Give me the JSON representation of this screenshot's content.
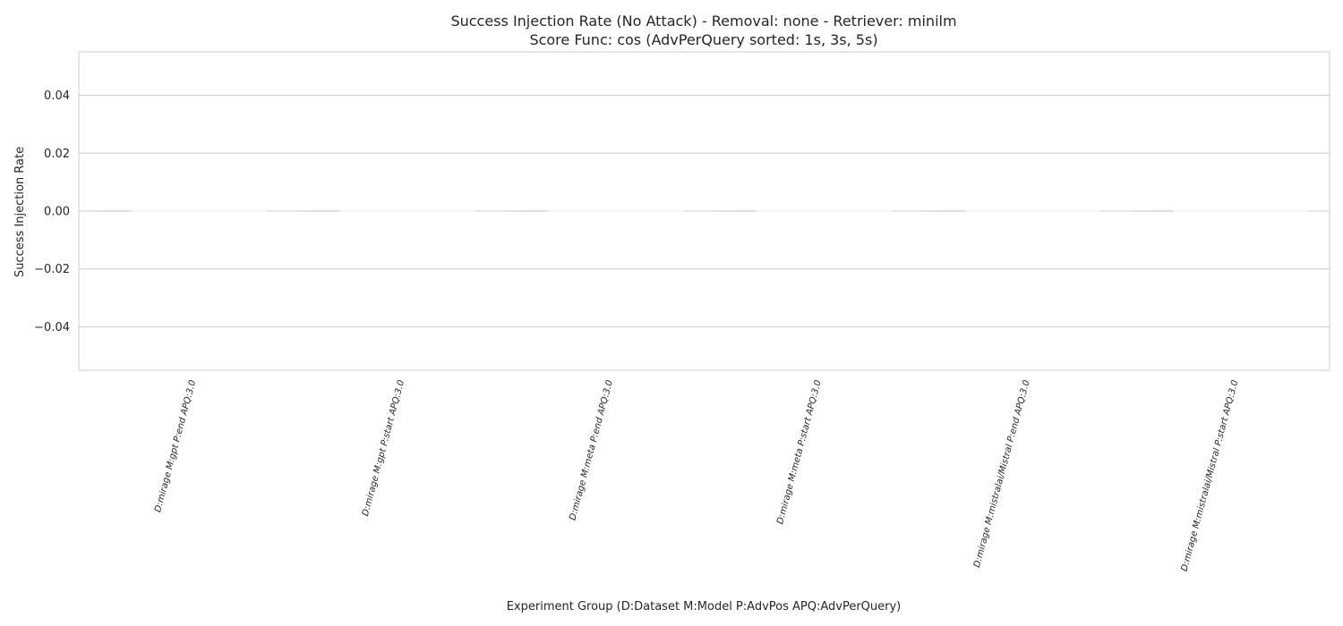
{
  "chart_data": {
    "type": "bar",
    "title": "Success Injection Rate (No Attack) - Removal: none - Retriever: minilm",
    "subtitle": "Score Func: cos (AdvPerQuery sorted: 1s, 3s, 5s)",
    "xlabel": "Experiment Group (D:Dataset M:Model P:AdvPos APQ:AdvPerQuery)",
    "ylabel": "Success Injection Rate",
    "categories": [
      "D:mirage M:gpt P:end APQ:3.0",
      "D:mirage M:gpt P:start APQ:3.0",
      "D:mirage M:meta P:end APQ:3.0",
      "D:mirage M:meta P:start APQ:3.0",
      "D:mirage M:mistralai/Mistral P:end APQ:3.0",
      "D:mirage M:mistralai/Mistral P:start APQ:3.0"
    ],
    "values": [
      0,
      0,
      0,
      0,
      0,
      0
    ],
    "ylim": [
      -0.055,
      0.055
    ],
    "yticks": [
      {
        "value": -0.04,
        "label": "−0.04"
      },
      {
        "value": -0.02,
        "label": "−0.02"
      },
      {
        "value": 0.0,
        "label": "0.00"
      },
      {
        "value": 0.02,
        "label": "0.02"
      },
      {
        "value": 0.04,
        "label": "0.04"
      }
    ],
    "grid": true,
    "style": "seaborn-whitegrid",
    "colors": {
      "grid": "#cccccc",
      "frame": "#cccccc",
      "text": "#262626",
      "bar": "#f0f0f0"
    }
  }
}
